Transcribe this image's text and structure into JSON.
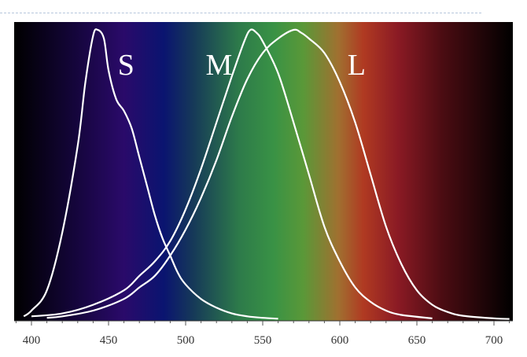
{
  "chart_data": {
    "type": "line",
    "title": "",
    "xlabel": "",
    "ylabel": "",
    "xlim": [
      390,
      712
    ],
    "ylim": [
      0,
      1
    ],
    "grid": false,
    "legend": "none",
    "x_ticks": [
      400,
      450,
      500,
      550,
      600,
      650,
      700
    ],
    "background": "visible spectrum gradient",
    "line_color": "#ffffff",
    "series": [
      {
        "name": "S",
        "label_at": [
          456,
          0.9
        ],
        "points": [
          [
            395,
            0.01
          ],
          [
            400,
            0.03
          ],
          [
            410,
            0.1
          ],
          [
            420,
            0.3
          ],
          [
            430,
            0.6
          ],
          [
            435,
            0.82
          ],
          [
            440,
            0.98
          ],
          [
            443,
            1.0
          ],
          [
            447,
            0.97
          ],
          [
            450,
            0.86
          ],
          [
            455,
            0.76
          ],
          [
            460,
            0.72
          ],
          [
            465,
            0.66
          ],
          [
            470,
            0.56
          ],
          [
            475,
            0.46
          ],
          [
            480,
            0.36
          ],
          [
            485,
            0.28
          ],
          [
            490,
            0.22
          ],
          [
            495,
            0.16
          ],
          [
            500,
            0.12
          ],
          [
            510,
            0.07
          ],
          [
            520,
            0.04
          ],
          [
            530,
            0.02
          ],
          [
            540,
            0.01
          ],
          [
            550,
            0.005
          ],
          [
            560,
            0.002
          ]
        ]
      },
      {
        "name": "M",
        "label_at": [
          513,
          0.9
        ],
        "points": [
          [
            400,
            0.01
          ],
          [
            420,
            0.02
          ],
          [
            440,
            0.05
          ],
          [
            460,
            0.1
          ],
          [
            470,
            0.15
          ],
          [
            480,
            0.2
          ],
          [
            490,
            0.27
          ],
          [
            500,
            0.38
          ],
          [
            510,
            0.52
          ],
          [
            520,
            0.68
          ],
          [
            530,
            0.84
          ],
          [
            538,
            0.96
          ],
          [
            542,
            1.0
          ],
          [
            546,
            0.99
          ],
          [
            550,
            0.96
          ],
          [
            560,
            0.85
          ],
          [
            570,
            0.68
          ],
          [
            580,
            0.5
          ],
          [
            590,
            0.32
          ],
          [
            600,
            0.2
          ],
          [
            610,
            0.11
          ],
          [
            620,
            0.06
          ],
          [
            630,
            0.03
          ],
          [
            640,
            0.015
          ],
          [
            660,
            0.003
          ]
        ]
      },
      {
        "name": "L",
        "label_at": [
          605,
          0.9
        ],
        "points": [
          [
            410,
            0.005
          ],
          [
            420,
            0.01
          ],
          [
            440,
            0.03
          ],
          [
            460,
            0.07
          ],
          [
            470,
            0.11
          ],
          [
            480,
            0.15
          ],
          [
            490,
            0.22
          ],
          [
            500,
            0.31
          ],
          [
            510,
            0.42
          ],
          [
            520,
            0.55
          ],
          [
            530,
            0.7
          ],
          [
            540,
            0.83
          ],
          [
            550,
            0.92
          ],
          [
            560,
            0.97
          ],
          [
            570,
            1.0
          ],
          [
            575,
            0.99
          ],
          [
            580,
            0.97
          ],
          [
            590,
            0.92
          ],
          [
            600,
            0.82
          ],
          [
            610,
            0.68
          ],
          [
            620,
            0.5
          ],
          [
            630,
            0.32
          ],
          [
            640,
            0.19
          ],
          [
            650,
            0.1
          ],
          [
            660,
            0.05
          ],
          [
            670,
            0.025
          ],
          [
            680,
            0.012
          ],
          [
            700,
            0.003
          ],
          [
            710,
            0.001
          ]
        ]
      }
    ]
  }
}
